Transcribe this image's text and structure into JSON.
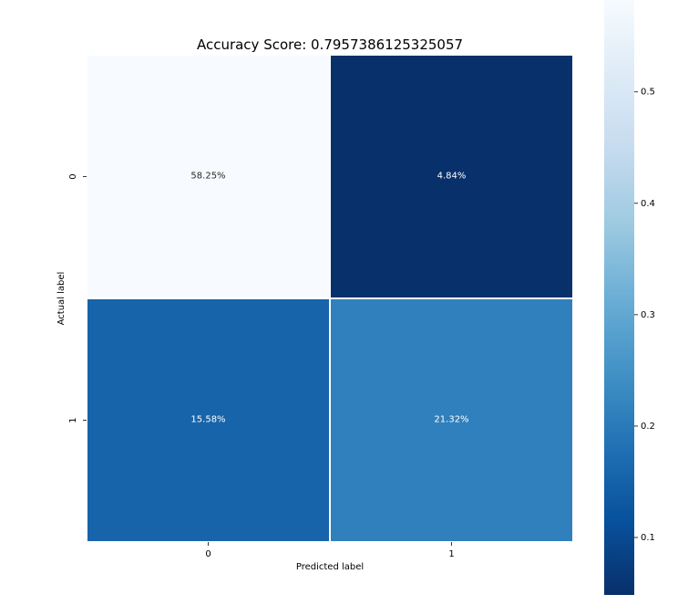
{
  "chart_data": {
    "type": "heatmap",
    "title": "Accuracy Score: 0.7957386125325057",
    "xlabel": "Predicted label",
    "ylabel": "Actual label",
    "x_categories": [
      "0",
      "1"
    ],
    "y_categories": [
      "0",
      "1"
    ],
    "values": [
      [
        0.5825,
        0.0484
      ],
      [
        0.1558,
        0.2132
      ]
    ],
    "cell_labels": [
      [
        "58.25%",
        "4.84%"
      ],
      [
        "15.58%",
        "21.32%"
      ]
    ],
    "colormap": "Blues_r",
    "colorbar": {
      "range": [
        0.0484,
        0.5825
      ],
      "ticks": [
        0.1,
        0.2,
        0.3,
        0.4,
        0.5
      ],
      "tick_labels": [
        "0.1",
        "0.2",
        "0.3",
        "0.4",
        "0.5"
      ]
    },
    "cell_border_color": "#ffffff",
    "legend": "none",
    "grid": false
  }
}
